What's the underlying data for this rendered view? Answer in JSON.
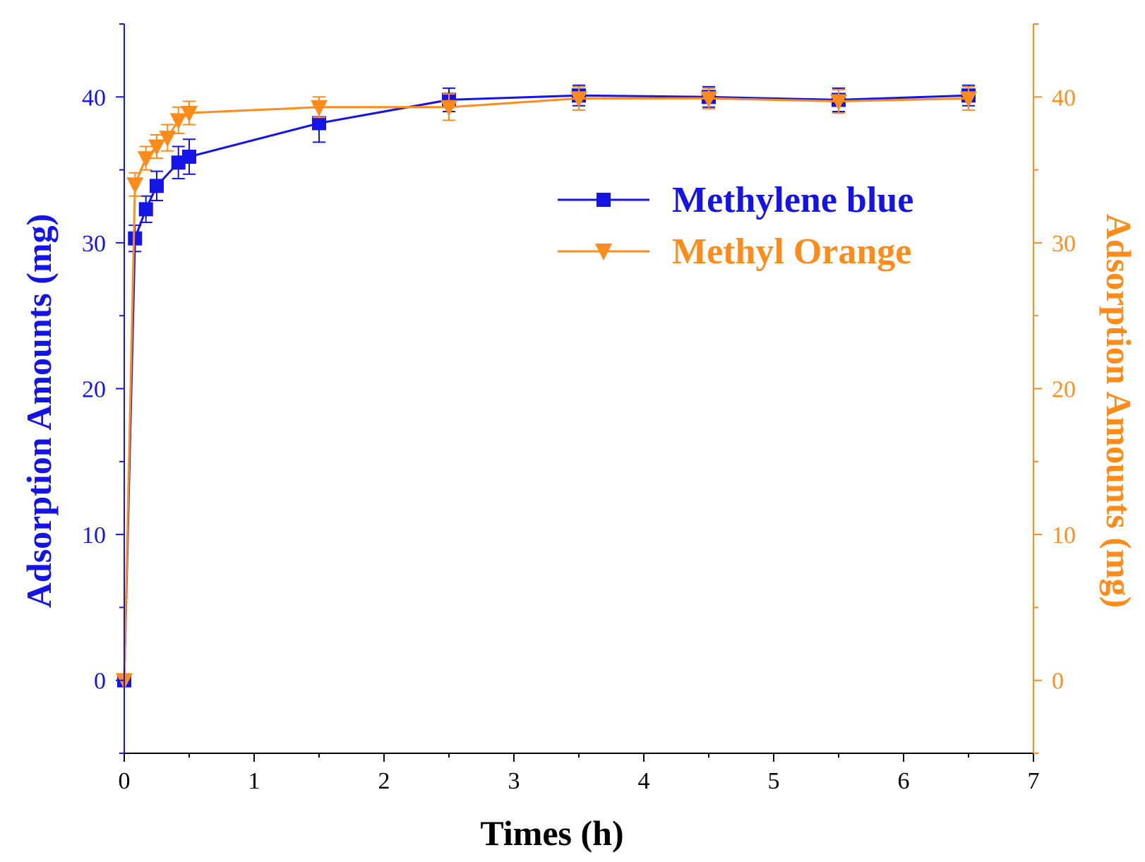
{
  "chart_data": {
    "type": "line",
    "title": "",
    "xlabel": "Times (h)",
    "ylabel_left": "Adsorption Amounts (mg)",
    "ylabel_right": "Adsorption Amounts (mg)",
    "xlim": [
      0,
      7
    ],
    "ylim": [
      -5,
      45
    ],
    "x_ticks": [
      0,
      1,
      2,
      3,
      4,
      5,
      6,
      7
    ],
    "y_ticks": [
      0,
      10,
      20,
      30,
      40
    ],
    "grid": false,
    "legend_position": "upper-right",
    "series": [
      {
        "name": "Methylene blue",
        "color": "#1414e6",
        "marker": "square",
        "axis": "left",
        "x": [
          0,
          0.083,
          0.167,
          0.25,
          0.417,
          0.5,
          1.5,
          2.5,
          3.5,
          4.5,
          5.5,
          6.5
        ],
        "y": [
          0,
          30.3,
          32.3,
          33.9,
          35.5,
          35.9,
          38.2,
          39.8,
          40.1,
          40.0,
          39.8,
          40.1
        ],
        "err": [
          0,
          0.9,
          0.9,
          1.0,
          1.1,
          1.2,
          1.3,
          0.8,
          0.7,
          0.7,
          0.8,
          0.7
        ]
      },
      {
        "name": "Methyl Orange",
        "color": "#ff8c1a",
        "marker": "triangle-down",
        "axis": "right",
        "x": [
          0,
          0.083,
          0.167,
          0.25,
          0.333,
          0.417,
          0.5,
          1.5,
          2.5,
          3.5,
          4.5,
          5.5,
          6.5
        ],
        "y": [
          0,
          34.0,
          35.8,
          36.6,
          37.2,
          38.4,
          38.9,
          39.3,
          39.3,
          39.9,
          39.9,
          39.7,
          39.9
        ],
        "err": [
          0,
          0.8,
          0.8,
          0.8,
          0.9,
          0.9,
          0.8,
          0.7,
          0.9,
          0.8,
          0.7,
          0.8,
          0.8
        ]
      }
    ]
  }
}
